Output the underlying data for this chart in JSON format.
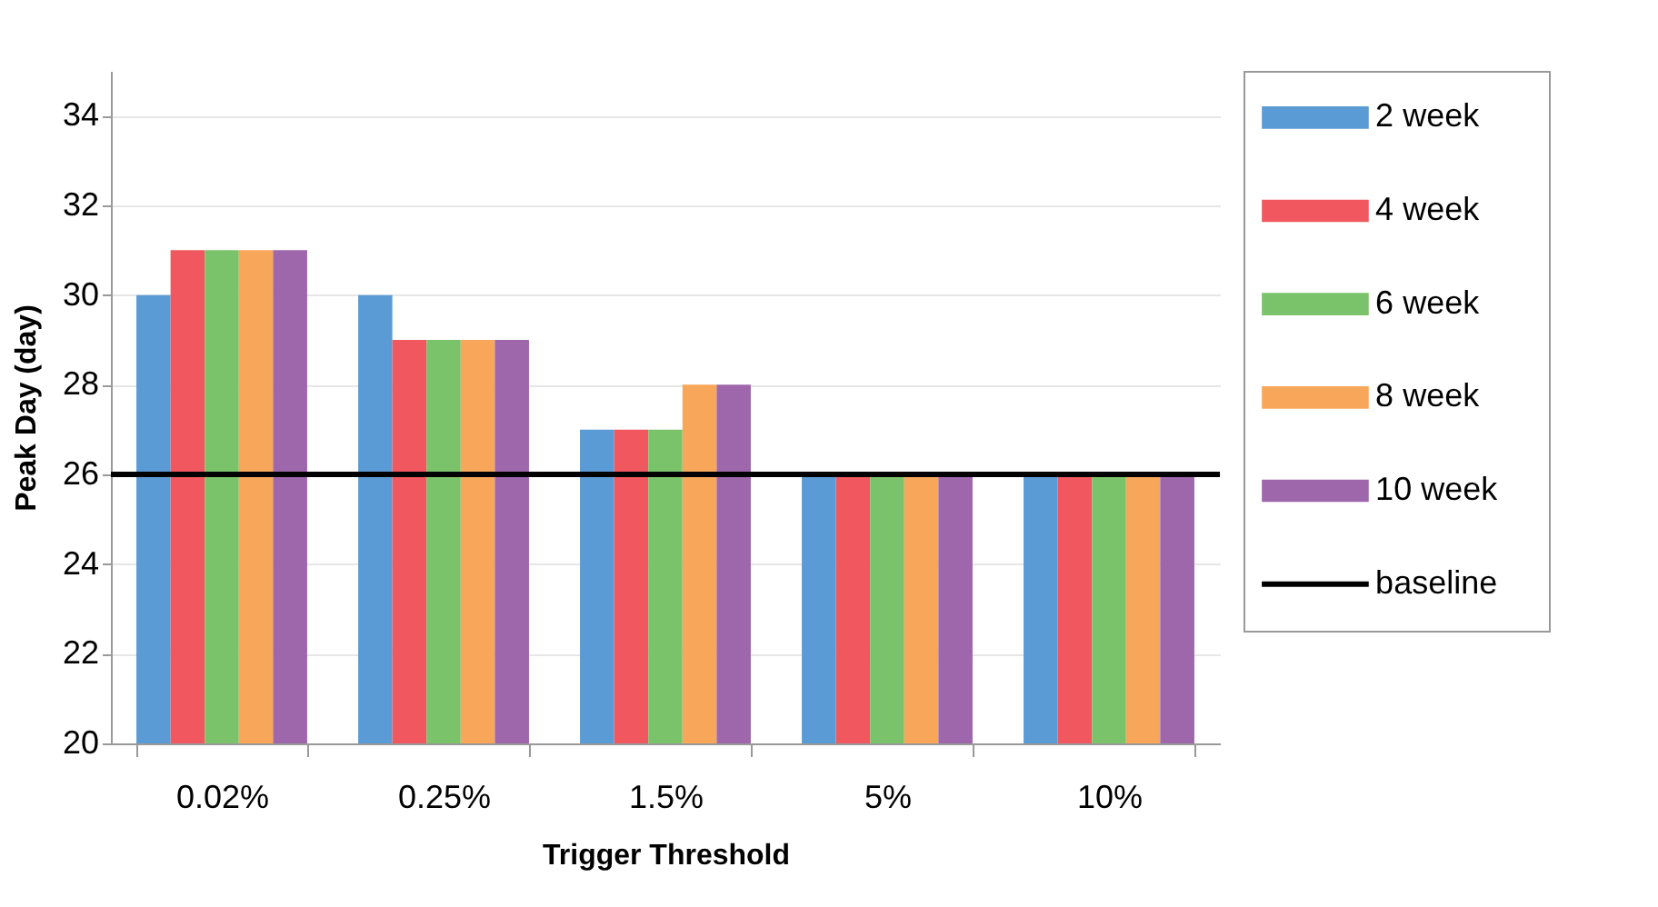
{
  "chart_data": {
    "type": "bar",
    "xlabel": "Trigger Threshold",
    "ylabel": "Peak Day (day)",
    "categories": [
      "0.02%",
      "0.25%",
      "1.5%",
      "5%",
      "10%"
    ],
    "series": [
      {
        "name": "2 week",
        "color": "#5b9bd5",
        "values": [
          30,
          30,
          27,
          26,
          26
        ]
      },
      {
        "name": "4 week",
        "color": "#f0575f",
        "values": [
          31,
          29,
          27,
          26,
          26
        ]
      },
      {
        "name": "6 week",
        "color": "#7bc36b",
        "values": [
          31,
          29,
          27,
          26,
          26
        ]
      },
      {
        "name": "8 week",
        "color": "#f8a65a",
        "values": [
          31,
          29,
          28,
          26,
          26
        ]
      },
      {
        "name": "10 week",
        "color": "#9e66ab",
        "values": [
          31,
          29,
          28,
          26,
          26
        ]
      }
    ],
    "ref_lines": [
      {
        "axis": "y",
        "value": 26,
        "label": "baseline",
        "color": "#000000",
        "line_style": "solid"
      }
    ],
    "ylim": [
      20,
      35
    ],
    "yticks": [
      20,
      22,
      24,
      26,
      28,
      30,
      32,
      34
    ],
    "grid": "y",
    "legend": "right"
  }
}
